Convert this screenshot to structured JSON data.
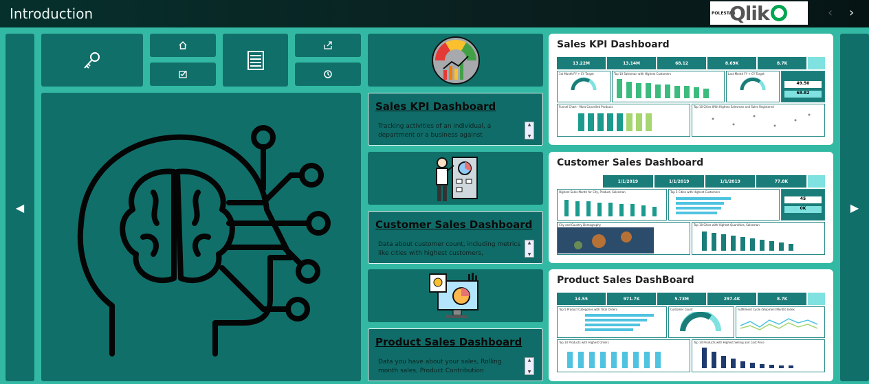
{
  "header": {
    "title": "Introduction",
    "logo_small": "POLESTAR",
    "logo_main": "Qlik"
  },
  "nav": {
    "prev": "‹",
    "next": "›"
  },
  "side": {
    "left": "◀",
    "right": "▶"
  },
  "cards": [
    {
      "title": "Sales KPI Dashboard",
      "text": "Tracking activities of an individual, a department or a business against predetermined goals."
    },
    {
      "title": "Customer Sales Dashboard",
      "text": "Data about customer count, including metrics like cities with highest customers, demography"
    },
    {
      "title": "Product Sales Dashboard",
      "text": "Data you have about your sales, Rolling month sales, Product Contribution"
    }
  ],
  "thumbs": [
    {
      "title": "Sales KPI Dashboard",
      "kpis": [
        "13.22M",
        "13.14M",
        "68.12",
        "8.69K",
        "8.7K"
      ],
      "panels": [
        "1st Month FY + CY Target",
        "Top 10 Salesman with Highest Customers",
        "Last Month FY + CY Target",
        "Funnel Chart - Most Cancelled Products",
        "Top 10 Cities With Highest Salesman and Sales Registered"
      ],
      "side_vals": [
        "49.50",
        "68.82"
      ]
    },
    {
      "title": "Customer Sales Dashboard",
      "kpis": [
        "1/1/2019",
        "1/1/2019",
        "1/1/2019",
        "77.8K"
      ],
      "panels": [
        "Highest Sales Month for City, Product, Salesman",
        "Top 5 Cities with Highest Customers",
        "City and Country Demography",
        "Top 10 Cities with Highest Quantities, Salesman"
      ],
      "side_vals": [
        "45",
        "0K"
      ]
    },
    {
      "title": "Product Sales DashBoard",
      "kpis": [
        "14.55",
        "971.7K",
        "5.73M",
        "297.4K",
        "8.7K"
      ],
      "panels": [
        "Top 5 Product Categories with Total Orders",
        "Customer Count",
        "Fulfillment Cycle (Shipment Month) Index",
        "Top 10 Products with Highest Orders",
        "Top 10 Products with Highest Selling and Cost Price"
      ],
      "side_vals": []
    }
  ],
  "scroll": {
    "up": "▲",
    "down": "▼"
  },
  "icons": {
    "key": "key-icon",
    "home": "home-icon",
    "check": "check-icon",
    "list": "list-icon",
    "share": "share-icon",
    "history": "history-icon",
    "brain": "brain-head-icon"
  }
}
